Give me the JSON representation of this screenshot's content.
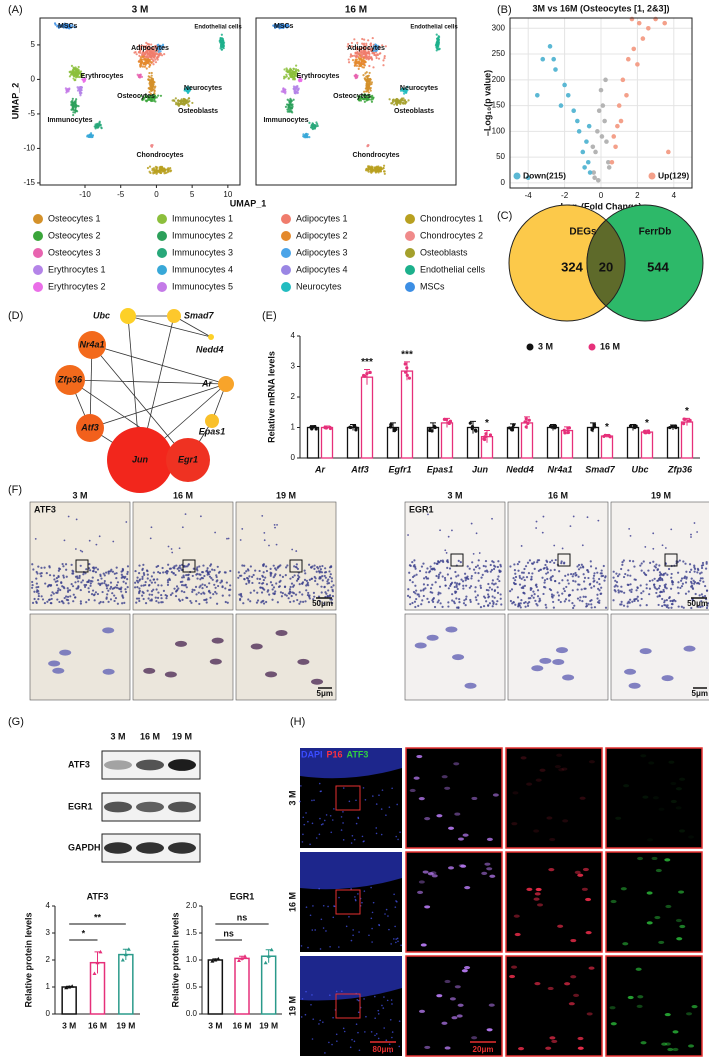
{
  "panel_labels": [
    "(A)",
    "(B)",
    "(C)",
    "(D)",
    "(E)",
    "(F)",
    "(G)",
    "(H)"
  ],
  "umap": {
    "titles": [
      "3 M",
      "16 M"
    ],
    "x_label": "UMAP_1",
    "y_label": "UMAP_2",
    "xlim": [
      -16.3,
      11.7
    ],
    "ylim": [
      -15.3,
      8.9
    ],
    "xticks": [
      -10,
      -5,
      0,
      5,
      10
    ],
    "yticks": [
      -15,
      -10,
      -5,
      0,
      5
    ],
    "cluster_labels": [
      "MSCs",
      "Endothelial cells",
      "Adipocytes",
      "Erythrocytes",
      "Osteocytes",
      "Neurocytes",
      "Osteoblasts",
      "Immunocytes",
      "Chondrocytes"
    ],
    "legend": [
      {
        "name": "Osteocytes 1",
        "color": "#d4912a"
      },
      {
        "name": "Osteocytes 2",
        "color": "#3aa53a"
      },
      {
        "name": "Osteocytes 3",
        "color": "#e864b0"
      },
      {
        "name": "Erythrocytes 1",
        "color": "#b484e8"
      },
      {
        "name": "Erythrocytes 2",
        "color": "#ea6ee8"
      },
      {
        "name": "Immunocytes 1",
        "color": "#8cbf3c"
      },
      {
        "name": "Immunocytes 2",
        "color": "#2ca05a"
      },
      {
        "name": "Immunocytes 3",
        "color": "#28a87a"
      },
      {
        "name": "Immunocytes 4",
        "color": "#38a8d8"
      },
      {
        "name": "Immunocytes 5",
        "color": "#c47ae8"
      },
      {
        "name": "Adipocytes 1",
        "color": "#f07c6c"
      },
      {
        "name": "Adipocytes 2",
        "color": "#e4892c"
      },
      {
        "name": "Adipocytes 3",
        "color": "#4aa4e8"
      },
      {
        "name": "Adipocytes 4",
        "color": "#9a86e4"
      },
      {
        "name": "Neurocytes",
        "color": "#22bcc0"
      },
      {
        "name": "Chondrocytes 1",
        "color": "#b8a020"
      },
      {
        "name": "Chondrocytes 2",
        "color": "#f08a8a"
      },
      {
        "name": "Osteoblasts",
        "color": "#a4a02c"
      },
      {
        "name": "Endothelial cells",
        "color": "#1cb08c"
      },
      {
        "name": "MSCs",
        "color": "#3c8ee4"
      }
    ]
  },
  "chart_data": [
    {
      "type": "scatter",
      "title": "3M vs 16M (Osteocytes [1, 2&3])",
      "x_label": "Log₂(Fold Change)",
      "y_label": "–Log₁₀(p value)",
      "xlim": [
        -5,
        5
      ],
      "ylim": [
        -10,
        320
      ],
      "xticks": [
        -4,
        -2,
        0,
        2,
        4
      ],
      "yticks": [
        0,
        50,
        100,
        150,
        200,
        250,
        300
      ],
      "grid": true,
      "series": [
        {
          "color": "#b4b4b4",
          "x": [
            -0.4,
            -0.3,
            -0.2,
            -0.1,
            0,
            0.1,
            0.2,
            0.3,
            0.4,
            -0.35,
            0.25,
            -0.15,
            0.05,
            0.45,
            -0.45
          ],
          "values": [
            20,
            60,
            100,
            140,
            180,
            150,
            120,
            80,
            40,
            10,
            200,
            5,
            90,
            30,
            70
          ]
        },
        {
          "name": "Down(215)",
          "color": "#5bb8d4",
          "x": [
            -3.2,
            -2.8,
            -2.5,
            -2.2,
            -2,
            -1.8,
            -1.5,
            -1.2,
            -1,
            -0.8,
            -0.7,
            -0.6,
            -4,
            -3.5,
            -1.3,
            -0.9,
            -2.6,
            -0.65
          ],
          "values": [
            240,
            265,
            220,
            150,
            190,
            170,
            140,
            100,
            60,
            80,
            40,
            20,
            10,
            170,
            120,
            30,
            240,
            110
          ]
        },
        {
          "name": "Up(129)",
          "color": "#f4a08a",
          "x": [
            0.6,
            0.7,
            0.9,
            1,
            1.2,
            1.5,
            1.8,
            2,
            2.3,
            2.6,
            3,
            3.5,
            3.7,
            1.4,
            0.8,
            1.1,
            2.1,
            1.7
          ],
          "values": [
            40,
            90,
            110,
            150,
            200,
            240,
            260,
            230,
            280,
            300,
            318,
            310,
            60,
            170,
            70,
            120,
            310,
            318
          ]
        }
      ]
    },
    {
      "type": "bar",
      "y_label": "Relative mRNA levels",
      "categories": [
        "Ar",
        "Atf3",
        "Egfr1",
        "Epas1",
        "Jun",
        "Nedd4",
        "Nr4a1",
        "Smad7",
        "Ubc",
        "Zfp36"
      ],
      "ylim": [
        0,
        4
      ],
      "yticks": [
        0,
        1,
        2,
        3,
        4
      ],
      "series": [
        {
          "name": "3 M",
          "color": "#111111",
          "values": [
            1,
            1,
            1,
            1,
            1,
            1,
            1,
            1,
            1,
            1
          ],
          "errors": [
            0.06,
            0.1,
            0.15,
            0.15,
            0.2,
            0.12,
            0.1,
            0.15,
            0.1,
            0.08
          ]
        },
        {
          "name": "16 M",
          "color": "#e6307a",
          "values": [
            1,
            2.65,
            2.85,
            1.15,
            0.7,
            1.15,
            0.9,
            0.72,
            0.85,
            1.18
          ],
          "errors": [
            0.05,
            0.25,
            0.3,
            0.15,
            0.2,
            0.2,
            0.12,
            0.05,
            0.06,
            0.12
          ]
        }
      ],
      "annotations": [
        null,
        "***",
        "***",
        null,
        "*",
        null,
        null,
        "*",
        "*",
        "*"
      ]
    },
    {
      "type": "bar",
      "title": "ATF3",
      "y_label": "Relative protein levels",
      "categories": [
        "3 M",
        "16 M",
        "19 M"
      ],
      "values": [
        1,
        1.9,
        2.2
      ],
      "errors": [
        0.03,
        0.4,
        0.2
      ],
      "colors": [
        "#111111",
        "#e6307a",
        "#2a9a8a"
      ],
      "ylim": [
        0,
        4
      ],
      "yticks": [
        0,
        1,
        2,
        3,
        4
      ],
      "significance": [
        "*",
        "**"
      ]
    },
    {
      "type": "bar",
      "title": "EGR1",
      "y_label": "Relative protein levels",
      "categories": [
        "3 M",
        "16 M",
        "19 M"
      ],
      "values": [
        1,
        1.03,
        1.07
      ],
      "errors": [
        0.02,
        0.04,
        0.12
      ],
      "colors": [
        "#111111",
        "#e6307a",
        "#2a9a8a"
      ],
      "ylim": [
        0,
        2
      ],
      "yticks": [
        {
          "value": 0,
          "label": "0.0"
        },
        {
          "value": 0.5,
          "label": "0.5"
        },
        {
          "value": 1,
          "label": "1.0"
        },
        {
          "value": 1.5,
          "label": "1.5"
        },
        {
          "value": 2,
          "label": "2.0"
        }
      ],
      "significance": [
        "ns",
        "ns"
      ]
    }
  ],
  "venn": {
    "sets": [
      "DEGs",
      "FerrDb"
    ],
    "counts": [
      324,
      20,
      544
    ]
  },
  "network": {
    "nodes": [
      {
        "name": "Ubc",
        "color": "#fdd028"
      },
      {
        "name": "Smad7",
        "color": "#fdc82c"
      },
      {
        "name": "Nedd4",
        "color": "#fdd028"
      },
      {
        "name": "Nr4a1",
        "color": "#f36a1c"
      },
      {
        "name": "Zfp36",
        "color": "#f26a1c"
      },
      {
        "name": "Ar",
        "color": "#f8a42a"
      },
      {
        "name": "Atf3",
        "color": "#f2601c"
      },
      {
        "name": "Epas1",
        "color": "#f9c02a"
      },
      {
        "name": "Jun",
        "color": "#f2261c"
      },
      {
        "name": "Egr1",
        "color": "#ef3222"
      }
    ]
  },
  "ihc": {
    "timepoints": [
      "3 M",
      "16 M",
      "19 M"
    ],
    "stains": [
      "ATF3",
      "EGR1"
    ],
    "scale_bars": [
      "50μm",
      "5μm"
    ]
  },
  "western": {
    "timepoints": [
      "3 M",
      "16 M",
      "19 M"
    ],
    "proteins": [
      "ATF3",
      "EGR1",
      "GAPDH"
    ]
  },
  "immunofluorescence": {
    "channels": [
      {
        "name": "DAPI",
        "color": "#3a4cff"
      },
      {
        "name": "P16",
        "color": "#ff3040"
      },
      {
        "name": "ATF3",
        "color": "#30d040"
      }
    ],
    "timepoints": [
      "3 M",
      "16 M",
      "19 M"
    ],
    "scale_bars": [
      "80μm",
      "20μm"
    ]
  }
}
